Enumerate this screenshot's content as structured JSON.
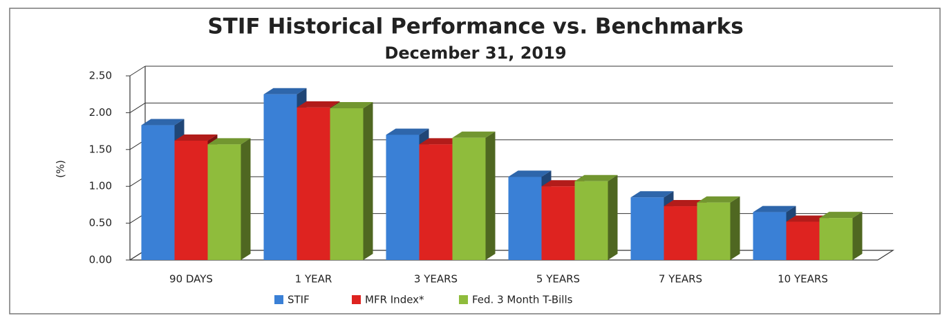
{
  "chart_data": {
    "type": "bar3d",
    "title": "STIF Historical Performance vs. Benchmarks",
    "subtitle": "December 31, 2019",
    "y_label": "(%)",
    "categories": [
      "90 DAYS",
      "1 YEAR",
      "3 YEARS",
      "5 YEARS",
      "7 YEARS",
      "10 YEARS"
    ],
    "series": [
      {
        "name": "STIF",
        "color": "#3a80d6",
        "values": [
          1.83,
          2.25,
          1.7,
          1.13,
          0.85,
          0.65
        ]
      },
      {
        "name": "MFR Index*",
        "color": "#de2320",
        "values": [
          1.62,
          2.07,
          1.57,
          1.0,
          0.73,
          0.52
        ]
      },
      {
        "name": "Fed. 3 Month T-Bills",
        "color": "#8fbc3c",
        "values": [
          1.57,
          2.06,
          1.66,
          1.07,
          0.78,
          0.57
        ]
      }
    ],
    "ylim": [
      0,
      2.5
    ],
    "yticks": [
      {
        "value": 0,
        "label": "0.00"
      },
      {
        "value": 0.5,
        "label": "0.50"
      },
      {
        "value": 1,
        "label": "1.00"
      },
      {
        "value": 1.5,
        "label": "1.50"
      },
      {
        "value": 2,
        "label": "2.00"
      },
      {
        "value": 2.5,
        "label": "2.50"
      }
    ],
    "grid": true
  }
}
